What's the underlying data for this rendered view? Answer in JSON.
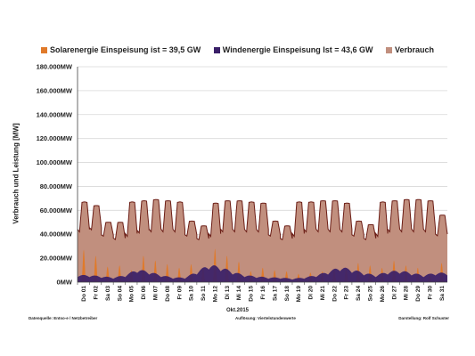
{
  "colors": {
    "solar": "#e07a2a",
    "wind": "#3a1f68",
    "consumption_fill": "#c18f7e",
    "consumption_line": "#6b1d15",
    "grid": "#d8d8d8"
  },
  "footer": {
    "source": "Datenquelle: Entso-e / Netzbetreiber",
    "resolution": "Auflösung: Viertelstundenwerte",
    "author": "Darstellung: Rolf Schuster"
  },
  "chart_data": {
    "type": "area",
    "title": "",
    "xlabel": "Okt.2015",
    "ylabel": "Verbrauch und Leistung [MW]",
    "ylim": [
      0,
      180000
    ],
    "yticks": [
      0,
      20000,
      40000,
      60000,
      80000,
      100000,
      120000,
      140000,
      160000,
      180000
    ],
    "ytick_labels": [
      "0MW",
      "20.000MW",
      "40.000MW",
      "60.000MW",
      "80.000MW",
      "100.000MW",
      "120.000MW",
      "140.000MW",
      "160.000MW",
      "180.000MW"
    ],
    "grid": true,
    "legend_position": "top",
    "x": [
      "Do 01",
      "Fr 02",
      "Sa 03",
      "So 04",
      "Mo 05",
      "Di 06",
      "Mi 07",
      "Do 08",
      "Fr 09",
      "Sa 10",
      "So 11",
      "Mo 12",
      "Di 13",
      "Mi 14",
      "Do 15",
      "Fr 16",
      "Sa 17",
      "So 18",
      "Mo 19",
      "Di 20",
      "Mi 21",
      "Do 22",
      "Fr 23",
      "Sa 24",
      "So 25",
      "Mo 26",
      "Di 27",
      "Mi 28",
      "Do 29",
      "Fr 30",
      "Sa 31"
    ],
    "series": [
      {
        "name": "Solarenergie Einspeisung ist = 39,5 GW",
        "daily_peak": [
          27000,
          22000,
          13000,
          14000,
          10000,
          22000,
          18000,
          15000,
          12000,
          15000,
          12000,
          28000,
          22000,
          17000,
          9000,
          12000,
          10000,
          9000,
          7000,
          8000,
          9000,
          11000,
          12000,
          16000,
          14000,
          12000,
          18000,
          14000,
          12000,
          7000,
          16000
        ]
      },
      {
        "name": "Windenergie Einspeisung Ist = 43,6 GW",
        "daily_peak": [
          6000,
          6000,
          5000,
          4000,
          6000,
          11000,
          9000,
          6000,
          4000,
          4000,
          9000,
          15000,
          13000,
          9000,
          6000,
          5000,
          4000,
          4000,
          3000,
          4000,
          6000,
          9000,
          13000,
          11000,
          8000,
          6000,
          9000,
          10000,
          8000,
          6000,
          8000
        ]
      },
      {
        "name": "Verbrauch",
        "daily_peak": [
          67000,
          64000,
          50000,
          50000,
          67000,
          68000,
          69000,
          68000,
          67000,
          51000,
          47000,
          66000,
          68000,
          68000,
          67000,
          66000,
          51000,
          47000,
          67000,
          67000,
          68000,
          68000,
          66000,
          51000,
          48000,
          67000,
          68000,
          69000,
          69000,
          68000,
          56000
        ],
        "daily_trough": [
          41000,
          43000,
          38000,
          35000,
          37000,
          40000,
          41000,
          41000,
          41000,
          38000,
          35000,
          37000,
          41000,
          41000,
          41000,
          41000,
          38000,
          35000,
          37000,
          41000,
          41000,
          41000,
          41000,
          38000,
          35000,
          37000,
          41000,
          41000,
          41000,
          41000,
          38000
        ]
      }
    ]
  }
}
